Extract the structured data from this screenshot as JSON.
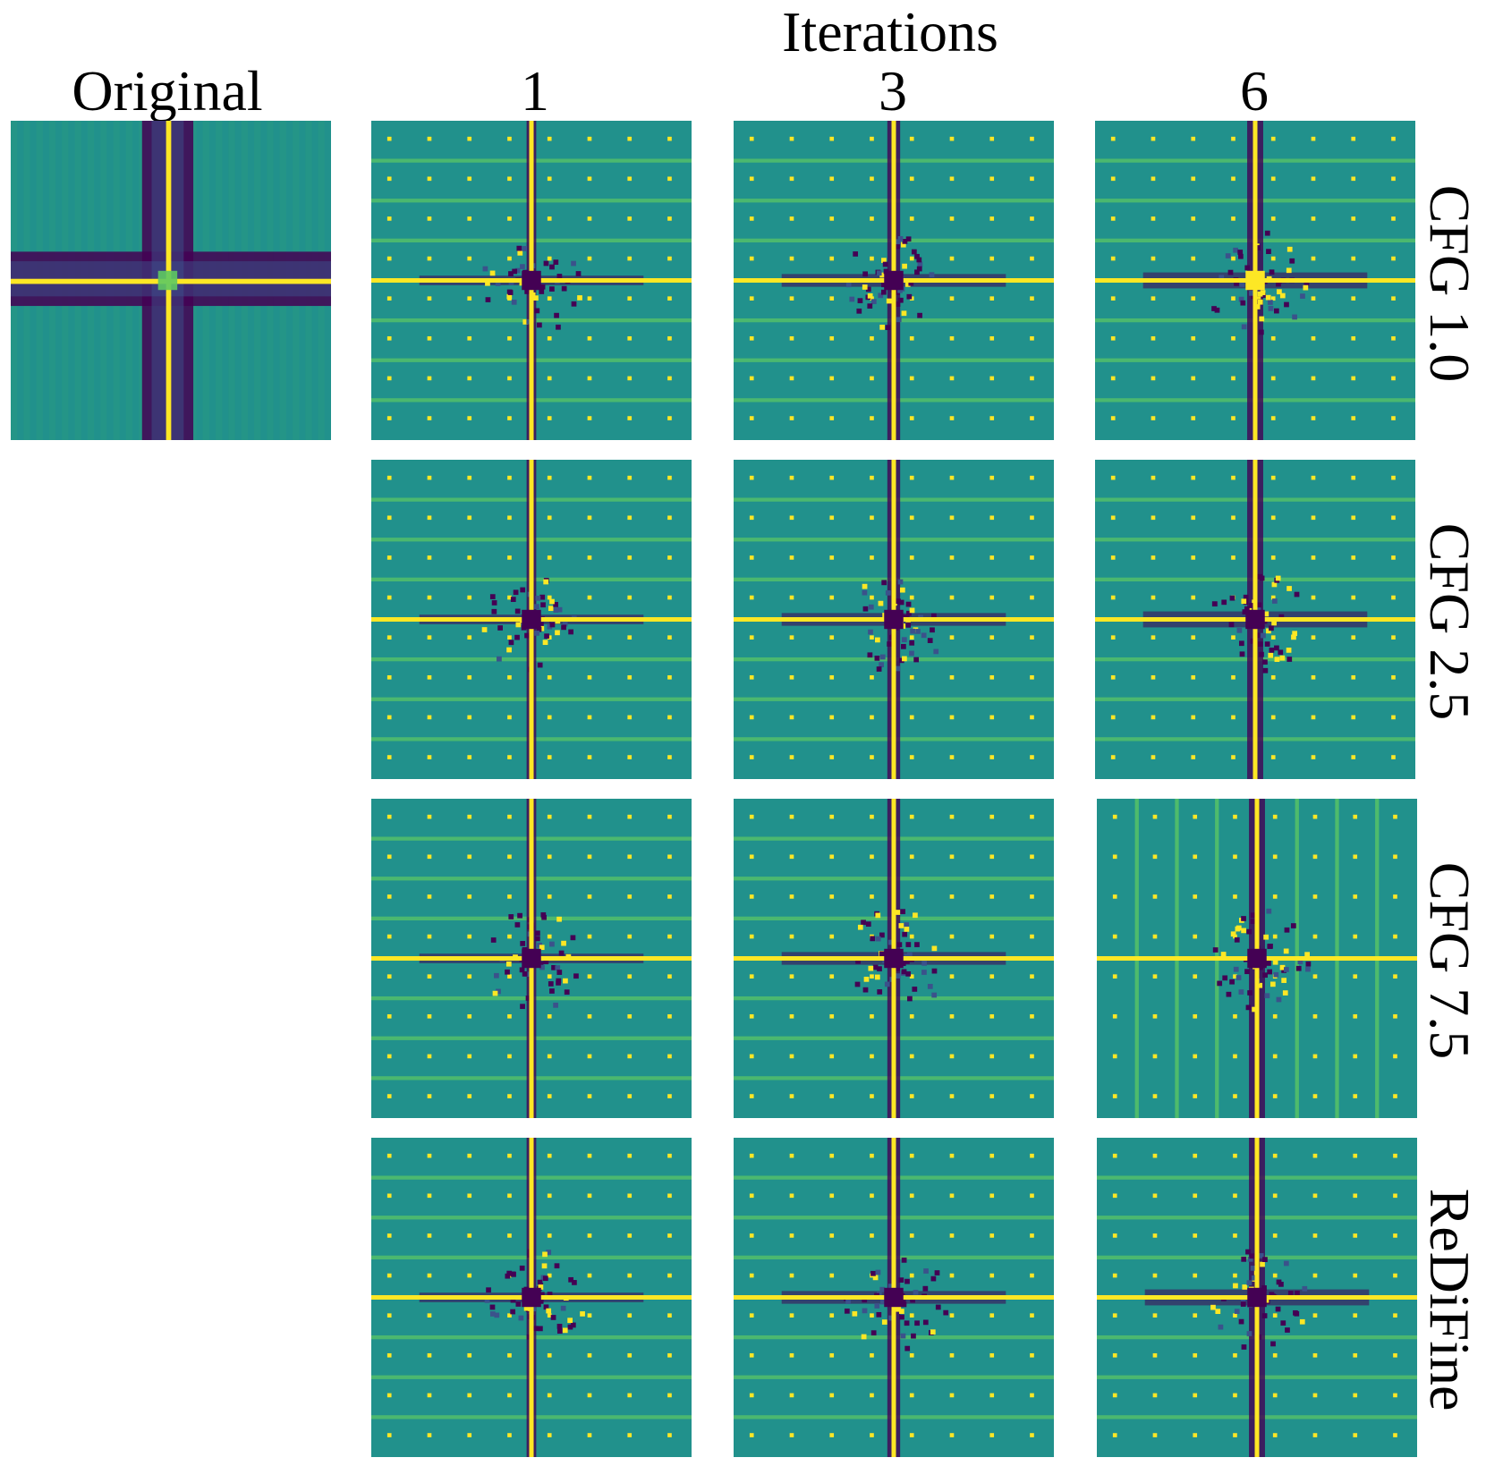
{
  "header": {
    "iterations_label": "Iterations",
    "original_label": "Original",
    "columns": [
      "1",
      "3",
      "6"
    ]
  },
  "rows": [
    "CFG 1.0",
    "CFG 2.5",
    "CFG 7.5",
    "ReDiFine"
  ],
  "colormap": {
    "name": "viridis",
    "dark": "#440154",
    "indigo": "#3b528b",
    "teal": "#21918c",
    "light_teal": "#2a9d7e",
    "green": "#5ec962",
    "yellow": "#fde725"
  }
}
